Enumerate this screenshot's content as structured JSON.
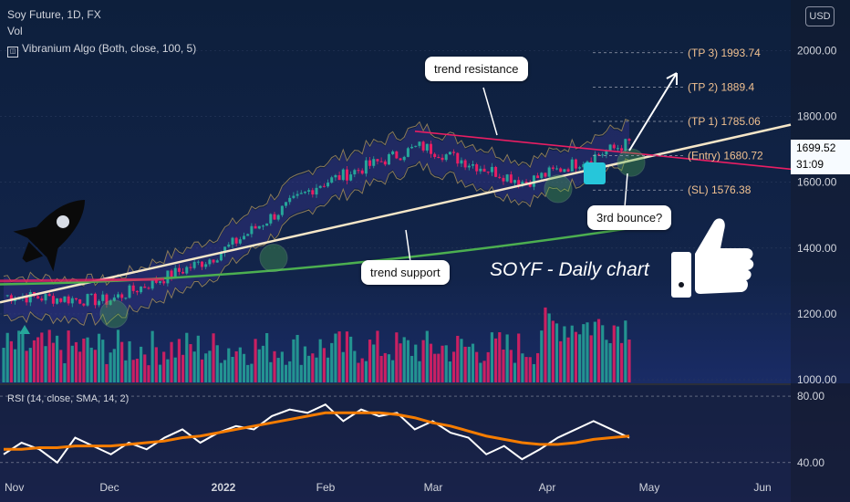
{
  "header": {
    "symbol_line": "Soy Future, 1D, FX",
    "volume_label": "Vol",
    "indicator_label": "Vibranium Algo (Both, close, 100, 5)",
    "currency_button": "USD"
  },
  "price_box": {
    "price": "1699.52",
    "countdown": "31:09"
  },
  "annotations": {
    "trend_resistance": "trend resistance",
    "trend_support": "trend support",
    "third_bounce": "3rd bounce?",
    "chart_title": "SOYF - Daily chart"
  },
  "colors": {
    "bull": "#26a69a",
    "bear": "#e91e63",
    "support_line": "#f5e6c8",
    "resistance_line": "#e91e63",
    "ma_line": "#4caf50",
    "rsi_line": "#ffffff",
    "rsi_ma_line": "#f57c00",
    "target_labels": "#f0c090"
  },
  "chart_data": {
    "type": "line",
    "title": "SOYF - Daily chart",
    "price_axis": {
      "ticks": [
        "2000.00",
        "1800.00",
        "1600.00",
        "1400.00",
        "1200.00",
        "1000.00"
      ],
      "ylim": [
        1000,
        2000
      ]
    },
    "time_axis": {
      "ticks": [
        "Nov",
        "Dec",
        "2022",
        "Feb",
        "Mar",
        "Apr",
        "May",
        "Jun"
      ]
    },
    "levels": [
      {
        "label": "(TP 3) 1993.74",
        "value": 1993.74
      },
      {
        "label": "(TP 2) 1889.4",
        "value": 1889.4
      },
      {
        "label": "(TP 1) 1785.06",
        "value": 1785.06
      },
      {
        "label": "(Entry) 1680.72",
        "value": 1680.72
      },
      {
        "label": "(SL) 1576.38",
        "value": 1576.38
      }
    ],
    "series": [
      {
        "name": "Soy Future",
        "x": [
          "Nov",
          "Dec",
          "2022",
          "Feb",
          "Mar",
          "Apr",
          "Apr 22"
        ],
        "values": [
          1255,
          1240,
          1370,
          1590,
          1710,
          1600,
          1720
        ]
      }
    ],
    "rsi": {
      "label": "RSI (14, close, SMA, 14, 2)",
      "ticks": [
        "80.00",
        "40.00"
      ],
      "ylim": [
        30,
        85
      ],
      "values": [
        45,
        52,
        48,
        40,
        55,
        50,
        45,
        52,
        48,
        55,
        60,
        52,
        58,
        62,
        60,
        68,
        72,
        70,
        75,
        65,
        72,
        68,
        70,
        60,
        65,
        58,
        55,
        45,
        50,
        42,
        48,
        55,
        60,
        65,
        60,
        55
      ],
      "ma_values": [
        48,
        48,
        49,
        49,
        50,
        50,
        50,
        51,
        52,
        53,
        55,
        56,
        58,
        60,
        62,
        64,
        66,
        68,
        70,
        70,
        70,
        70,
        69,
        67,
        64,
        62,
        59,
        56,
        54,
        52,
        51,
        51,
        52,
        54,
        55,
        56
      ]
    }
  }
}
